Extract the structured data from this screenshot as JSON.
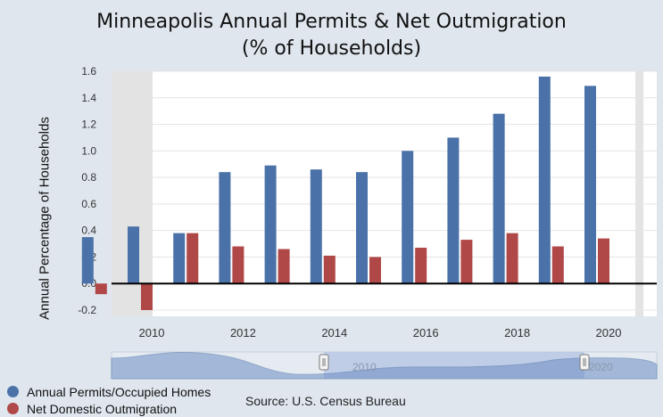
{
  "title_line1": "Minneapolis Annual Permits & Net Outmigration",
  "title_line2": "(% of Households)",
  "source": "Source: U.S. Census Bureau",
  "colors": {
    "permits": "#4a72a8",
    "outmigration": "#b04848",
    "background": "#dfe6ee"
  },
  "chart_data": {
    "type": "bar",
    "categories": [
      "2009",
      "2010",
      "2011",
      "2012",
      "2013",
      "2014",
      "2015",
      "2016",
      "2017",
      "2018",
      "2019",
      "2020"
    ],
    "x_tick_labels": [
      "2010",
      "2012",
      "2014",
      "2016",
      "2018",
      "2020"
    ],
    "series": [
      {
        "name": "Annual Permits/Occupied Homes",
        "values": [
          0.35,
          0.43,
          0.38,
          0.84,
          0.89,
          0.86,
          0.84,
          1.0,
          1.1,
          1.28,
          1.56,
          1.49
        ]
      },
      {
        "name": "Net Domestic Outmigration",
        "values": [
          -0.08,
          -0.2,
          0.38,
          0.28,
          0.26,
          0.21,
          0.2,
          0.27,
          0.33,
          0.38,
          0.28,
          0.34
        ]
      }
    ],
    "ylabel": "Annual Percentage of Households",
    "ylim": [
      -0.2,
      1.6
    ],
    "yticks": [
      "1.6",
      "1.4",
      "1.2",
      "1.0",
      "0.8",
      "0.6",
      "0.4",
      "0.2",
      "0.0",
      "-0.2"
    ],
    "navigator_labels": [
      "2010",
      "2020"
    ],
    "legend_position": "bottom-left",
    "grid": true
  }
}
